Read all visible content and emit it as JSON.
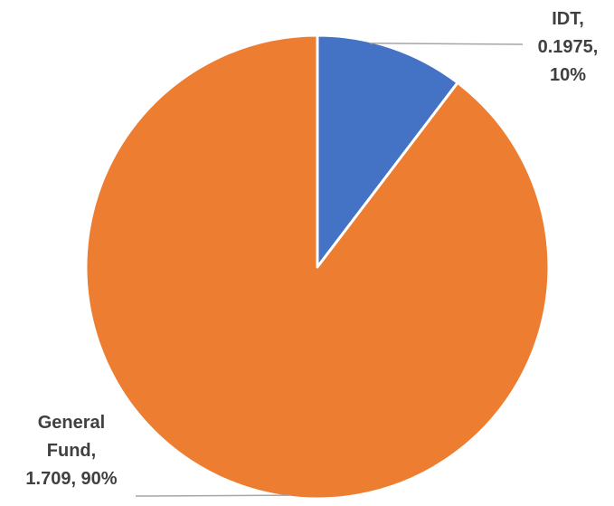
{
  "chart_data": {
    "type": "pie",
    "slices": [
      {
        "name": "IDT",
        "value": 0.1975,
        "percent": "10%",
        "color": "#4472C4",
        "label_lines": [
          "IDT,",
          "0.1975,",
          "10%"
        ]
      },
      {
        "name": "General Fund",
        "value": 1.709,
        "percent": "90%",
        "color": "#ED7D31",
        "label_lines": [
          "General",
          "Fund,",
          "1.709, 90%"
        ]
      }
    ],
    "start_angle": "12 o'clock",
    "direction": "clockwise",
    "legend": "none",
    "slice_border_color": "#FFFFFF",
    "leader_line_color": "#A6A6A6"
  }
}
